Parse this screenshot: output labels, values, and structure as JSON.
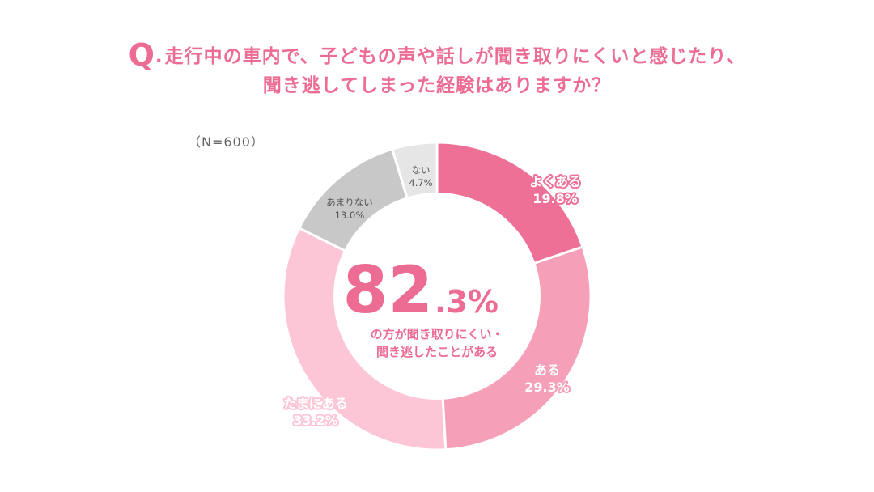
{
  "question": {
    "mark": "Q",
    "dot": ".",
    "line1": "走行中の車内で、子どもの声や話しが聞き取りにくいと感じたり、",
    "line2": "聞き逃してしまった経験はありますか？"
  },
  "sample_size": "（N=600）",
  "center": {
    "number": "82",
    "decimal": ".3%",
    "caption_line1": "の方が聞き取りにくい・",
    "caption_line2": "聞き逃したことがある"
  },
  "colors": {
    "よくある": "#ee7097",
    "ある": "#f59fb8",
    "たまにある": "#fcc6d6",
    "あまりない": "#c8c8c8",
    "ない": "#e6e6e6",
    "accent": "#ec6c94"
  },
  "chart_data": {
    "type": "pie",
    "donut": true,
    "start": "top",
    "direction": "clockwise",
    "slices": [
      {
        "label": "よくある",
        "value": 19.8,
        "value_label": "19.8%"
      },
      {
        "label": "ある",
        "value": 29.3,
        "value_label": "29.3%"
      },
      {
        "label": "たまにある",
        "value": 33.2,
        "value_label": "33.2%"
      },
      {
        "label": "あまりない",
        "value": 13.0,
        "value_label": "13.0%"
      },
      {
        "label": "ない",
        "value": 4.7,
        "value_label": "4.7%"
      }
    ]
  }
}
